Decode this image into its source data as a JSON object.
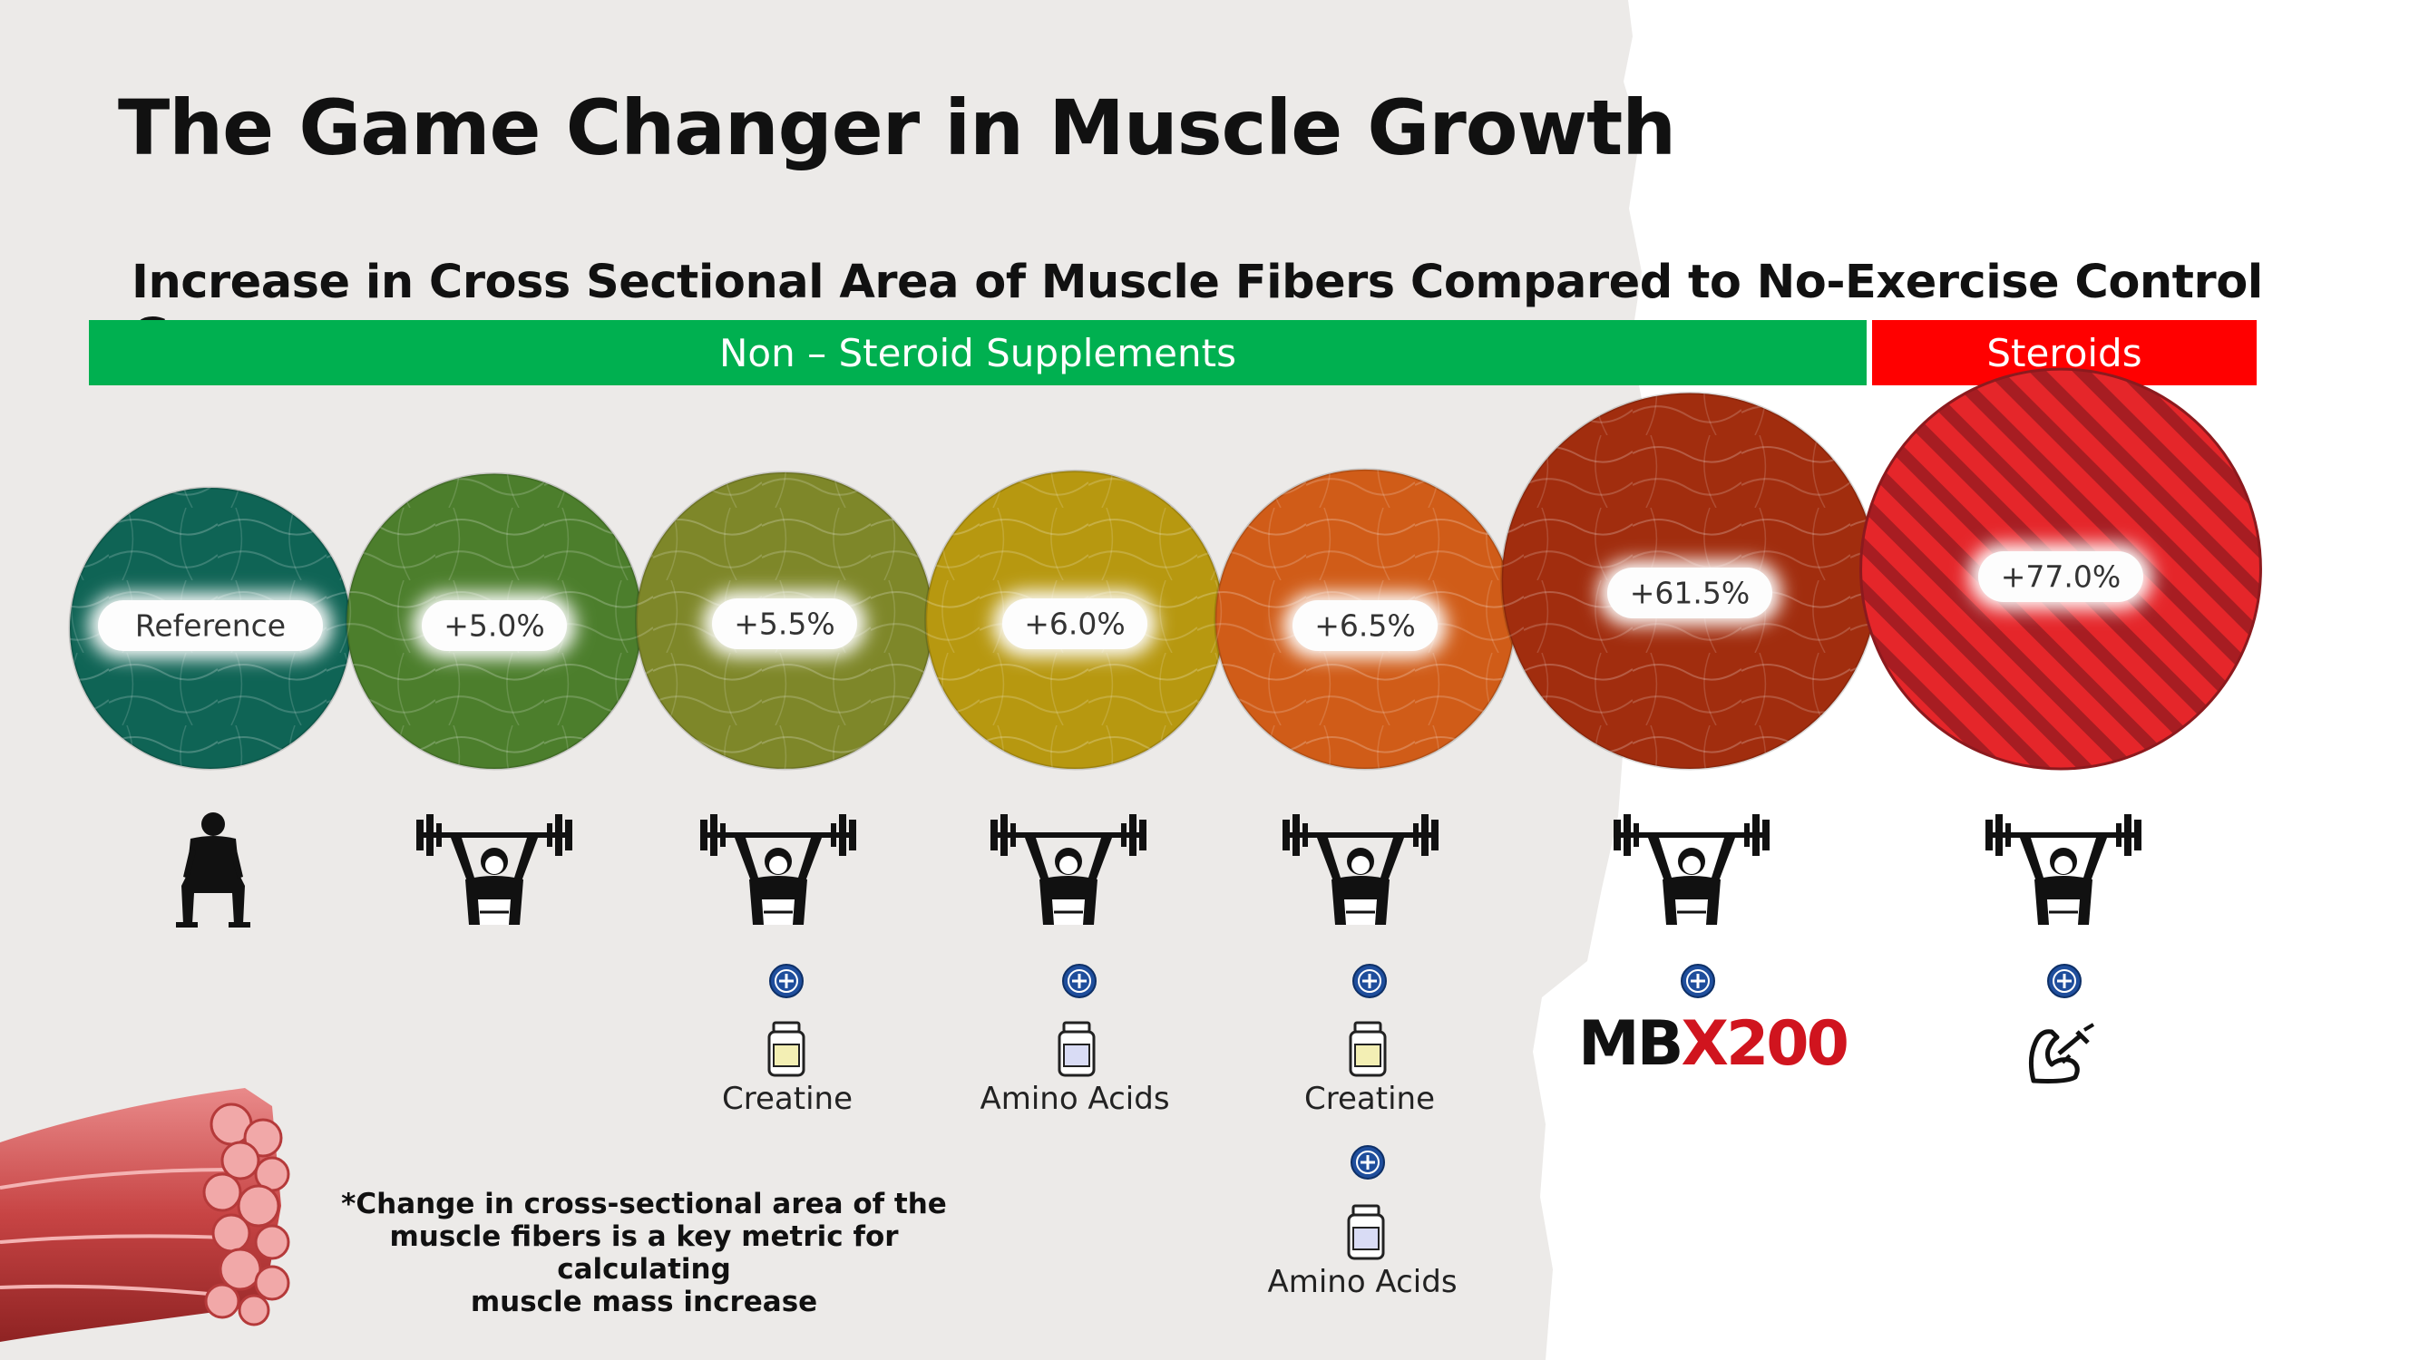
{
  "header": {
    "title": "The Game Changer in Muscle Growth"
  },
  "bands": {
    "non_steroid": "Non – Steroid Supplements",
    "steroids": "Steroids"
  },
  "chart_data": {
    "type": "bubble",
    "title": "Increase in Cross Sectional Area of Muscle Fibers Compared to No-Exercise Control Group",
    "categories": [
      "Reference",
      "Exercise",
      "Exercise + Creatine",
      "Exercise + Amino Acids",
      "Exercise + Creatine + Amino Acids",
      "Exercise + MBX200",
      "Exercise + Steroids"
    ],
    "values": [
      0,
      5.0,
      5.5,
      6.0,
      6.5,
      61.5,
      77.0
    ],
    "labels": [
      "Reference",
      "+5.0%",
      "+5.5%",
      "+6.0%",
      "+6.5%",
      "+61.5%",
      "+77.0%"
    ],
    "groups": [
      "Non – Steroid Supplements",
      "Non – Steroid Supplements",
      "Non – Steroid Supplements",
      "Non – Steroid Supplements",
      "Non – Steroid Supplements",
      "Non – Steroid Supplements",
      "Steroids"
    ],
    "colors": [
      "#0f6455",
      "#4c7e2c",
      "#7e8729",
      "#b79810",
      "#d05c18",
      "#a12d0e",
      "#e5262a"
    ],
    "group_colors": {
      "non_steroid": "#00b050",
      "steroids": "#ff0000"
    }
  },
  "supplements": {
    "creatine": "Creatine",
    "amino_acids": "Amino Acids",
    "creatine_2": "Creatine",
    "amino_acids_2": "Amino Acids"
  },
  "mbx_logo": {
    "mb": "MB",
    "x": "X",
    "num": "200"
  },
  "icons": {
    "reference": "seated-person-icon",
    "exercise": "weightlifter-icon",
    "add": "plus-circle-icon",
    "jar": "supplement-jar-icon",
    "steroid": "flexed-arm-syringe-icon",
    "muscle": "muscle-fiber-bundle-icon"
  },
  "footnote": {
    "line1": "*Change in cross-sectional area of the",
    "line2": "muscle fibers is a key metric for calculating",
    "line3": "muscle mass increase"
  }
}
